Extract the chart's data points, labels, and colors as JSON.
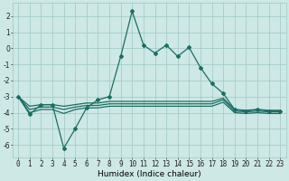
{
  "xlabel": "Humidex (Indice chaleur)",
  "bg_color": "#cde8e5",
  "grid_color": "#9dc8c4",
  "line_color": "#1a6e62",
  "xlim": [
    -0.5,
    23.5
  ],
  "ylim": [
    -6.8,
    2.8
  ],
  "xticks": [
    0,
    1,
    2,
    3,
    4,
    5,
    6,
    7,
    8,
    9,
    10,
    11,
    12,
    13,
    14,
    15,
    16,
    17,
    18,
    19,
    20,
    21,
    22,
    23
  ],
  "yticks": [
    -6,
    -5,
    -4,
    -3,
    -2,
    -1,
    0,
    1,
    2
  ],
  "line1_x": [
    0,
    1,
    2,
    3,
    4,
    5,
    6,
    7,
    8,
    9,
    10,
    11,
    12,
    13,
    14,
    15,
    16,
    17,
    18,
    19,
    20,
    21,
    22,
    23
  ],
  "line1_y": [
    -3.0,
    -4.1,
    -3.5,
    -3.5,
    -6.2,
    -5.0,
    -3.7,
    -3.2,
    -3.0,
    -0.5,
    2.3,
    0.2,
    -0.3,
    0.2,
    -0.5,
    0.05,
    -1.2,
    -2.2,
    -2.8,
    -3.8,
    -3.9,
    -3.8,
    -3.9,
    -3.9
  ],
  "line2_x": [
    0,
    1,
    2,
    3,
    4,
    5,
    6,
    7,
    8,
    9,
    10,
    11,
    12,
    13,
    14,
    15,
    16,
    17,
    18,
    19,
    20,
    21,
    22,
    23
  ],
  "line2_y": [
    -3.0,
    -3.6,
    -3.5,
    -3.5,
    -3.6,
    -3.5,
    -3.4,
    -3.4,
    -3.3,
    -3.3,
    -3.3,
    -3.3,
    -3.3,
    -3.3,
    -3.3,
    -3.3,
    -3.3,
    -3.3,
    -3.1,
    -3.8,
    -3.85,
    -3.8,
    -3.85,
    -3.85
  ],
  "line3_x": [
    0,
    1,
    2,
    3,
    4,
    5,
    6,
    7,
    8,
    9,
    10,
    11,
    12,
    13,
    14,
    15,
    16,
    17,
    18,
    19,
    20,
    21,
    22,
    23
  ],
  "line3_y": [
    -3.0,
    -3.8,
    -3.65,
    -3.65,
    -3.8,
    -3.65,
    -3.55,
    -3.55,
    -3.45,
    -3.45,
    -3.45,
    -3.45,
    -3.45,
    -3.45,
    -3.45,
    -3.45,
    -3.45,
    -3.45,
    -3.2,
    -3.9,
    -3.95,
    -3.9,
    -3.95,
    -3.95
  ],
  "line4_x": [
    0,
    1,
    2,
    3,
    4,
    5,
    6,
    7,
    8,
    9,
    10,
    11,
    12,
    13,
    14,
    15,
    16,
    17,
    18,
    19,
    20,
    21,
    22,
    23
  ],
  "line4_y": [
    -3.0,
    -4.0,
    -3.8,
    -3.8,
    -4.05,
    -3.8,
    -3.7,
    -3.7,
    -3.6,
    -3.6,
    -3.6,
    -3.6,
    -3.6,
    -3.6,
    -3.6,
    -3.6,
    -3.6,
    -3.6,
    -3.35,
    -4.0,
    -4.05,
    -4.0,
    -4.05,
    -4.05
  ],
  "marker": "D",
  "markersize": 2.0,
  "linewidth": 0.9,
  "tick_fontsize": 5.5,
  "xlabel_fontsize": 6.5
}
